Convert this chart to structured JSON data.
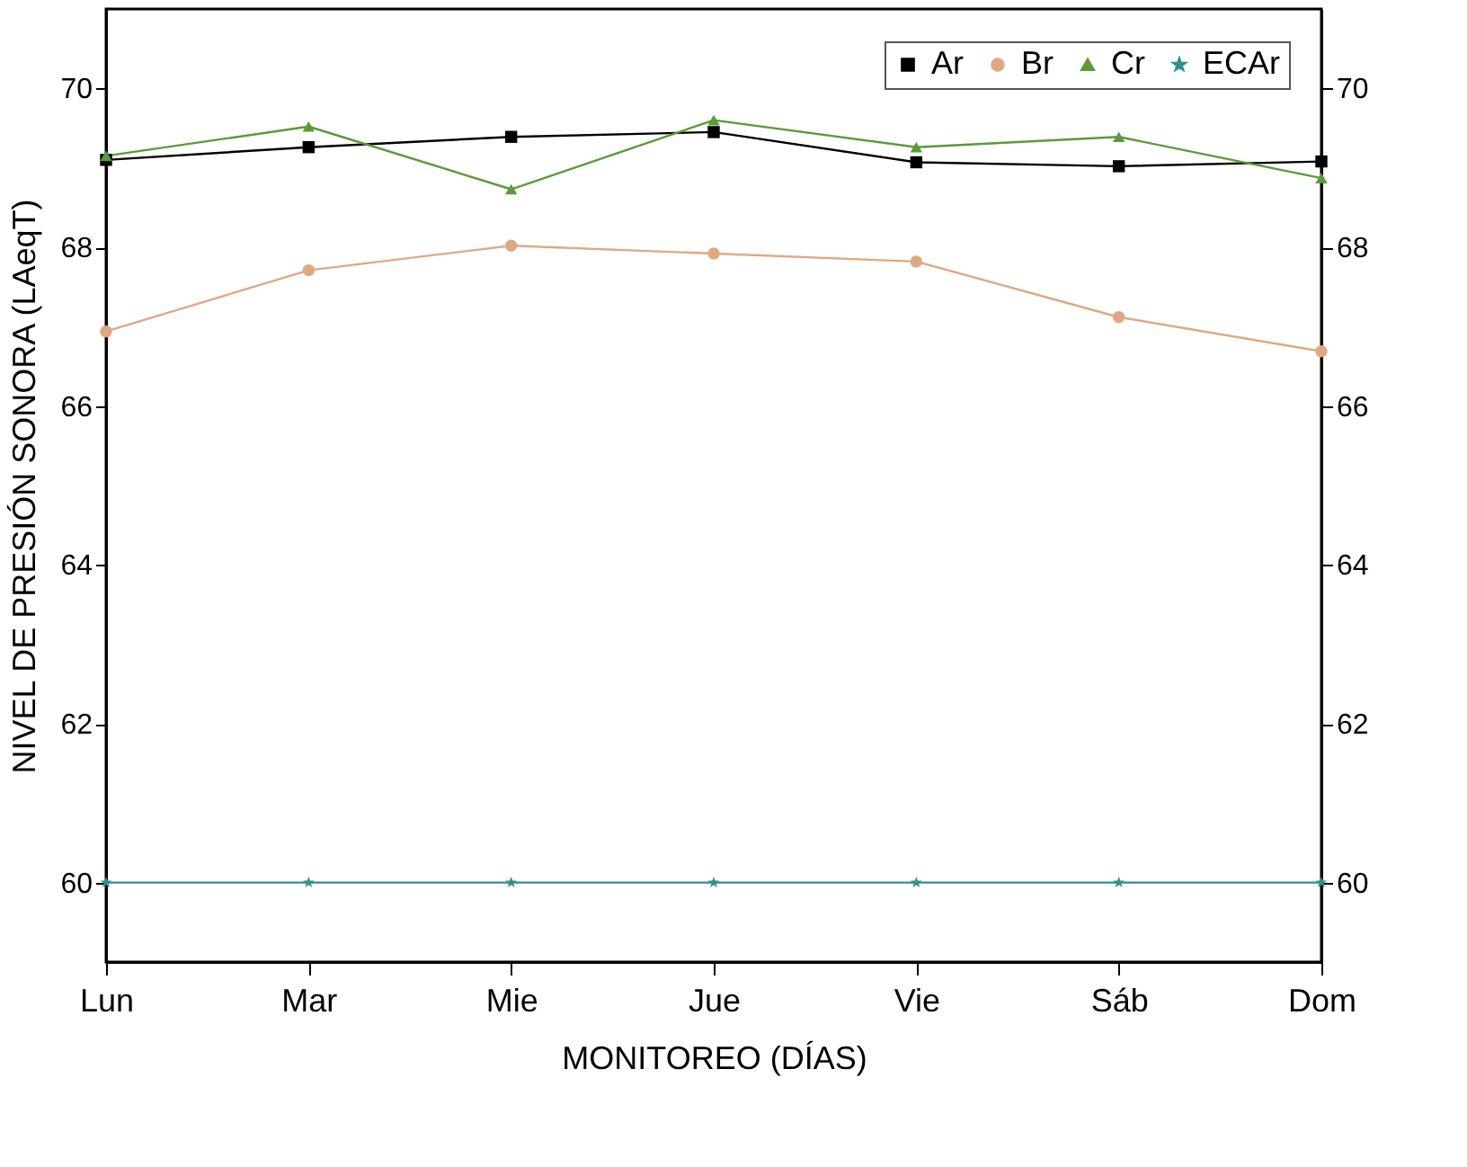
{
  "chart_data": {
    "type": "line",
    "xlabel": "MONITOREO (DÍAS)",
    "ylabel": "NIVEL DE PRESIÓN SONORA (LAeqT)",
    "categories": [
      "Lun",
      "Mar",
      "Mie",
      "Jue",
      "Vie",
      "Sáb",
      "Dom"
    ],
    "series": [
      {
        "name": "Ar",
        "color": "#000000",
        "marker": "square",
        "values": [
          69.1,
          69.26,
          69.39,
          69.45,
          69.07,
          69.02,
          69.08
        ]
      },
      {
        "name": "Br",
        "color": "#e0a882",
        "marker": "circle",
        "values": [
          66.94,
          67.71,
          68.02,
          67.92,
          67.82,
          67.12,
          66.69
        ]
      },
      {
        "name": "Cr",
        "color": "#5a9a3a",
        "marker": "triangle",
        "values": [
          69.15,
          69.52,
          68.73,
          69.6,
          69.26,
          69.39,
          68.87
        ]
      },
      {
        "name": "ECAr",
        "color": "#2f8f8f",
        "marker": "star",
        "values": [
          60,
          60,
          60,
          60,
          60,
          60,
          60
        ]
      }
    ],
    "ylim": [
      59,
      71
    ],
    "yticks": [
      60,
      62,
      64,
      66,
      68,
      70
    ],
    "y2lim": [
      59,
      71
    ],
    "y2ticks": [
      60,
      62,
      64,
      66,
      68,
      70
    ],
    "grid": false,
    "legend": "top right",
    "line_style": "solid"
  }
}
